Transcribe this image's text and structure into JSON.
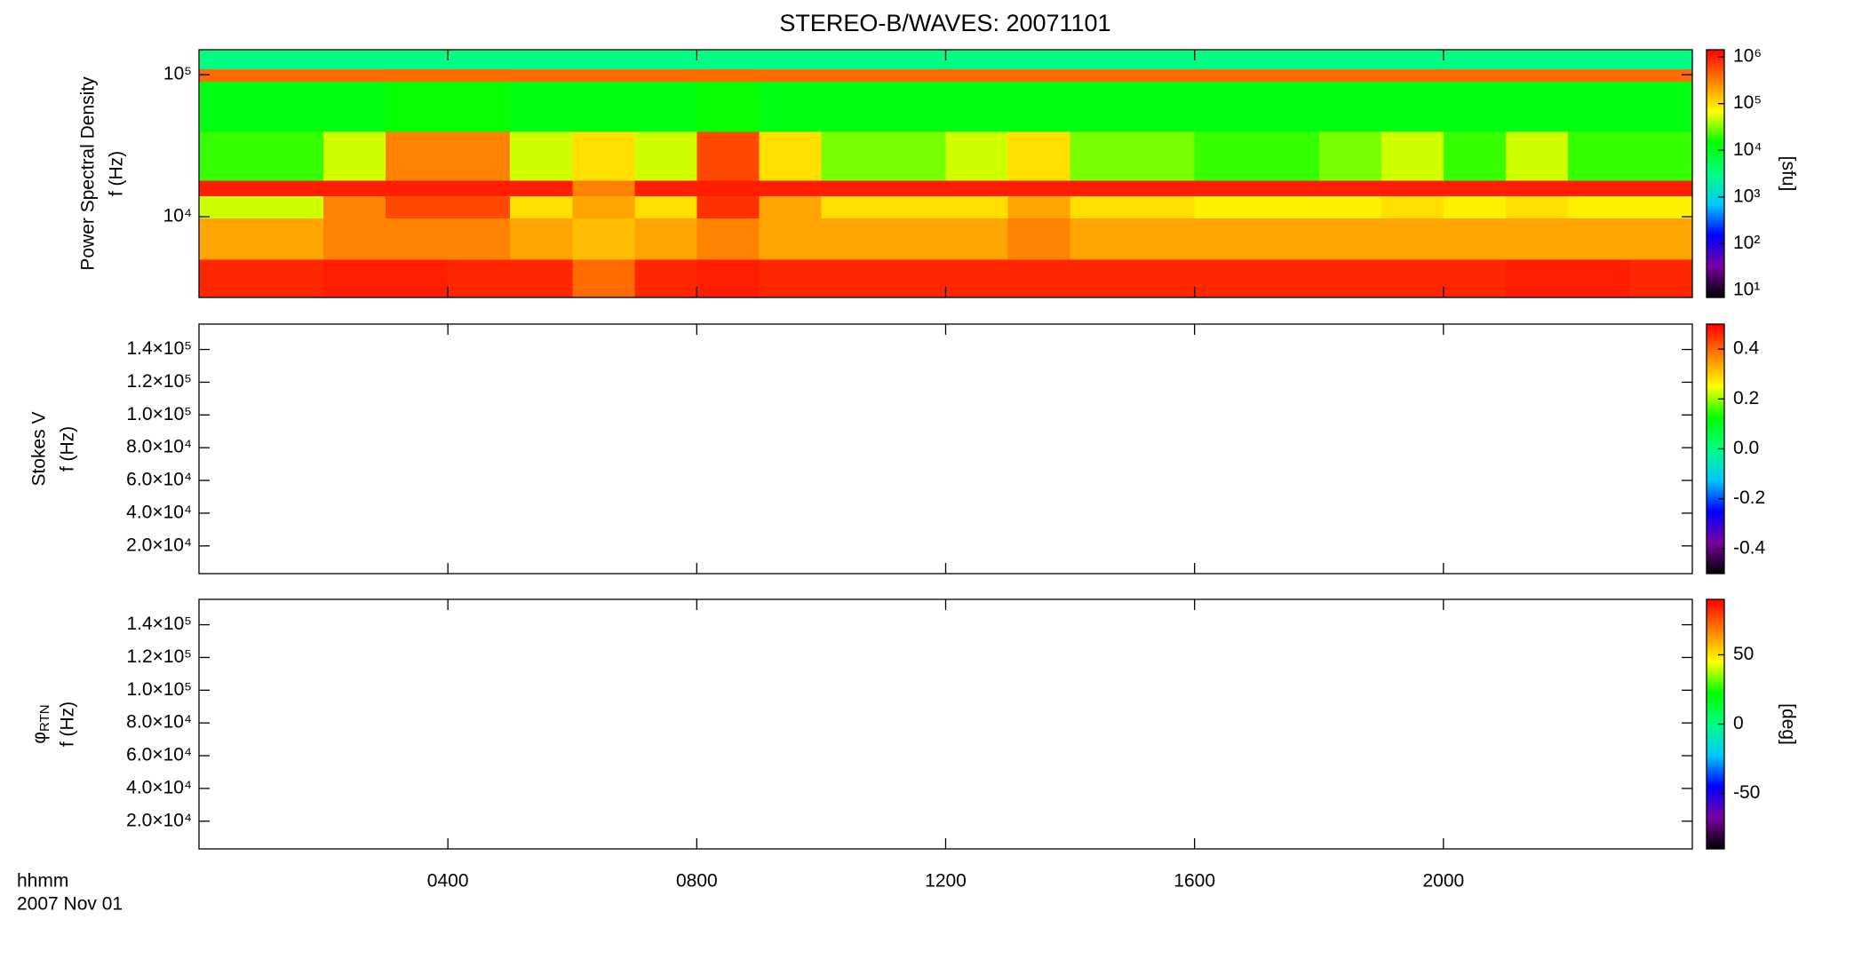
{
  "chart_data": [
    {
      "type": "heatmap",
      "title": "STEREO-B/WAVES: 20071101",
      "ylabel": [
        "Power Spectral Density",
        "f (Hz)"
      ],
      "ylog": true,
      "ylim": [
        2700,
        150000
      ],
      "yticks": [
        {
          "value": 10000,
          "label": "10⁴"
        },
        {
          "value": 100000,
          "label": "10⁵"
        }
      ],
      "colormap": [
        "#000000",
        "#7a00a0",
        "#0000ff",
        "#00c8ff",
        "#00ff80",
        "#00ff00",
        "#ffff00",
        "#ff8000",
        "#ff0000"
      ],
      "clog": true,
      "clim": [
        7,
        1430000
      ],
      "cticks": [
        {
          "value": 10,
          "label": "10¹"
        },
        {
          "value": 100,
          "label": "10²"
        },
        {
          "value": 1000,
          "label": "10³"
        },
        {
          "value": 10000,
          "label": "10⁴"
        },
        {
          "value": 100000,
          "label": "10⁵"
        },
        {
          "value": 1000000,
          "label": "10⁶"
        }
      ],
      "clabel": "[sfu]",
      "heatmap": {
        "x_edges": [
          0,
          1,
          2,
          3,
          4,
          5,
          6,
          7,
          8,
          9,
          10,
          11,
          12,
          13,
          14,
          15,
          16,
          17,
          18,
          19,
          20,
          21,
          22,
          23,
          24
        ],
        "y_edges": [
          2700,
          5000,
          9800,
          14000,
          18000,
          40000,
          90000,
          110000,
          150000
        ],
        "values": [
          [
            900000,
            900000,
            1000000,
            1000000,
            900000,
            900000,
            400000,
            900000,
            1000000,
            900000,
            900000,
            900000,
            900000,
            900000,
            900000,
            900000,
            900000,
            900000,
            900000,
            900000,
            900000,
            1000000,
            1000000,
            900000
          ],
          [
            200000,
            200000,
            300000,
            300000,
            300000,
            200000,
            150000,
            200000,
            300000,
            200000,
            200000,
            200000,
            200000,
            300000,
            200000,
            200000,
            200000,
            200000,
            200000,
            200000,
            200000,
            200000,
            200000,
            200000
          ],
          [
            50000,
            50000,
            300000,
            600000,
            600000,
            100000,
            200000,
            100000,
            800000,
            200000,
            100000,
            100000,
            100000,
            200000,
            100000,
            100000,
            80000,
            80000,
            80000,
            100000,
            80000,
            100000,
            80000,
            80000
          ],
          [
            1000000,
            1000000,
            1000000,
            1000000,
            1000000,
            1000000,
            300000,
            1000000,
            1000000,
            1000000,
            1000000,
            1000000,
            1000000,
            1000000,
            1000000,
            1000000,
            1000000,
            1000000,
            1000000,
            1000000,
            1000000,
            1000000,
            1000000,
            1000000
          ],
          [
            20000,
            20000,
            50000,
            300000,
            300000,
            50000,
            100000,
            50000,
            600000,
            100000,
            30000,
            30000,
            50000,
            100000,
            30000,
            30000,
            20000,
            20000,
            30000,
            50000,
            20000,
            50000,
            20000,
            20000
          ],
          [
            12000,
            12000,
            12000,
            15000,
            15000,
            12000,
            12000,
            12000,
            15000,
            12000,
            12000,
            12000,
            12000,
            12000,
            12000,
            12000,
            12000,
            12000,
            12000,
            12000,
            12000,
            12000,
            12000,
            12000
          ],
          [
            400000,
            400000,
            400000,
            400000,
            400000,
            400000,
            400000,
            400000,
            400000,
            400000,
            400000,
            400000,
            400000,
            400000,
            400000,
            400000,
            400000,
            400000,
            400000,
            400000,
            400000,
            400000,
            400000,
            400000
          ],
          [
            3000,
            3000,
            3000,
            3000,
            3000,
            3000,
            3000,
            3000,
            3000,
            3000,
            3000,
            3000,
            3000,
            3000,
            3000,
            3000,
            3000,
            3000,
            3000,
            3000,
            3000,
            3000,
            3000,
            3000
          ]
        ]
      }
    },
    {
      "type": "heatmap",
      "ylabel": [
        "Stokes V",
        "f (Hz)"
      ],
      "ylim": [
        3070,
        155500
      ],
      "yticks": [
        {
          "value": 20000,
          "label": "2.0×10⁴"
        },
        {
          "value": 40000,
          "label": "4.0×10⁴"
        },
        {
          "value": 60000,
          "label": "6.0×10⁴"
        },
        {
          "value": 80000,
          "label": "8.0×10⁴"
        },
        {
          "value": 100000,
          "label": "1.0×10⁵"
        },
        {
          "value": 120000,
          "label": "1.2×10⁵"
        },
        {
          "value": 140000,
          "label": "1.4×10⁵"
        }
      ],
      "clim": [
        -0.5,
        0.5
      ],
      "cticks": [
        -0.4,
        -0.2,
        {
          "value": 0,
          "label": "0.0"
        },
        0.2,
        0.4
      ]
    },
    {
      "type": "heatmap",
      "ylabel": [
        "φ",
        "f (Hz)"
      ],
      "ylabel_sub": "RTN",
      "ylim": [
        3070,
        155500
      ],
      "yticks": [
        {
          "value": 20000,
          "label": "2.0×10⁴"
        },
        {
          "value": 40000,
          "label": "4.0×10⁴"
        },
        {
          "value": 60000,
          "label": "6.0×10⁴"
        },
        {
          "value": 80000,
          "label": "8.0×10⁴"
        },
        {
          "value": 100000,
          "label": "1.0×10⁵"
        },
        {
          "value": 120000,
          "label": "1.2×10⁵"
        },
        {
          "value": 140000,
          "label": "1.4×10⁵"
        }
      ],
      "clim": [
        -90,
        90
      ],
      "cticks": [
        -50,
        0,
        50
      ],
      "clabel": "[deg]",
      "xlim": [
        0,
        24
      ],
      "xticks": [
        {
          "value": 4,
          "label": "0400"
        },
        {
          "value": 8,
          "label": "0800"
        },
        {
          "value": 12,
          "label": "1200"
        },
        {
          "value": 16,
          "label": "1600"
        },
        {
          "value": 20,
          "label": "2000"
        }
      ],
      "xlabel": "hhmm",
      "date_label": "2007 Nov 01"
    }
  ]
}
